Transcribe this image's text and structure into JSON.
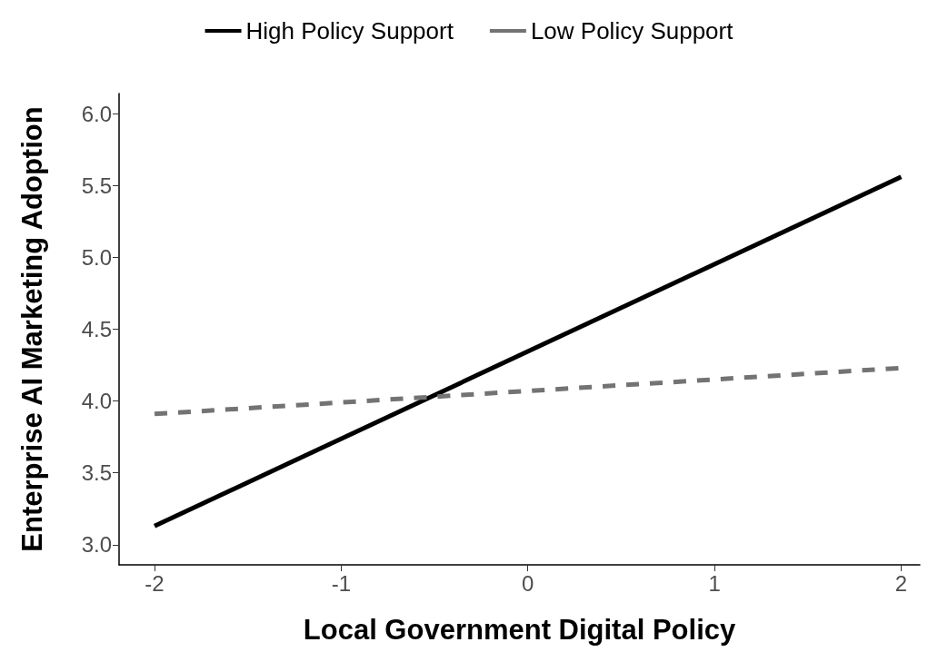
{
  "chart_data": {
    "type": "line",
    "xlabel": "Local Government Digital Policy",
    "ylabel": "Enterprise AI Marketing Adoption",
    "series": [
      {
        "name": "High Policy Support",
        "color": "#000000",
        "values": [
          3.13,
          5.56
        ],
        "line_style": "solid"
      },
      {
        "name": "Low Policy Support",
        "color": "#737373",
        "values": [
          3.91,
          4.23
        ],
        "line_style": "dashed"
      }
    ],
    "x": [
      -2,
      2
    ],
    "xlim": [
      -2.19,
      2.1
    ],
    "xticks": [
      -2,
      -1,
      0,
      1,
      2
    ],
    "ylim": [
      2.86,
      6.14
    ],
    "yticks": [
      {
        "value": 3,
        "label": "3.0"
      },
      3.5,
      {
        "value": 4,
        "label": "4.0"
      },
      4.5,
      {
        "value": 5,
        "label": "5.0"
      },
      5.5,
      {
        "value": 6,
        "label": "6.0"
      }
    ],
    "grid": false,
    "legend": "top",
    "marker": "none"
  }
}
